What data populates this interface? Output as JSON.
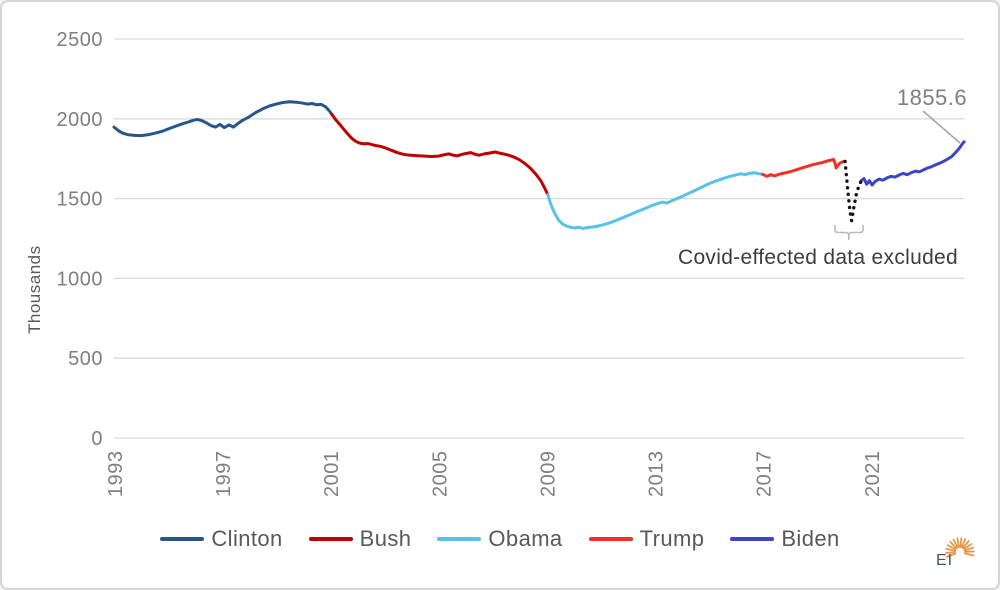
{
  "chart_data": {
    "type": "line",
    "title": "",
    "xlabel": "",
    "ylabel": "Thousands",
    "ylim": [
      0,
      2500
    ],
    "xlim": [
      1993,
      2024.45
    ],
    "yticks": [
      "0",
      "500",
      "1000",
      "1500",
      "2000",
      "2500"
    ],
    "ytick_values": [
      0,
      500,
      1000,
      1500,
      2000,
      2500
    ],
    "xticks": [
      "1993",
      "1997",
      "2001",
      "2005",
      "2009",
      "2013",
      "2017",
      "2021"
    ],
    "xtick_values": [
      1993,
      1997,
      2001,
      2005,
      2009,
      2013,
      2017,
      2021
    ],
    "grid": true,
    "legend_position": "bottom",
    "colors": {
      "grid": "#d9d9d9",
      "tick_text": "#7f7f7f",
      "annotation_text": "#7f7f7f",
      "covid_text": "#3d3d3d",
      "leader_line": "#a6a6a6",
      "bracket": "#b9b9b9",
      "excluded_dots": "#151515"
    },
    "series": [
      {
        "name": "Clinton",
        "color": "#26568C",
        "points": [
          [
            1993.0,
            1948
          ],
          [
            1993.17,
            1925
          ],
          [
            1993.33,
            1910
          ],
          [
            1993.5,
            1901
          ],
          [
            1993.75,
            1896
          ],
          [
            1994.0,
            1895
          ],
          [
            1994.25,
            1900
          ],
          [
            1994.5,
            1909
          ],
          [
            1994.75,
            1920
          ],
          [
            1995.0,
            1936
          ],
          [
            1995.25,
            1952
          ],
          [
            1995.5,
            1967
          ],
          [
            1995.75,
            1980
          ],
          [
            1995.92,
            1990
          ],
          [
            1996.08,
            1996
          ],
          [
            1996.25,
            1989
          ],
          [
            1996.42,
            1975
          ],
          [
            1996.58,
            1958
          ],
          [
            1996.75,
            1948
          ],
          [
            1996.92,
            1965
          ],
          [
            1997.08,
            1945
          ],
          [
            1997.25,
            1962
          ],
          [
            1997.42,
            1948
          ],
          [
            1997.58,
            1970
          ],
          [
            1997.75,
            1990
          ],
          [
            1998.0,
            2012
          ],
          [
            1998.25,
            2040
          ],
          [
            1998.5,
            2062
          ],
          [
            1998.75,
            2080
          ],
          [
            1999.0,
            2092
          ],
          [
            1999.25,
            2102
          ],
          [
            1999.5,
            2107
          ],
          [
            1999.75,
            2104
          ],
          [
            2000.0,
            2098
          ],
          [
            2000.17,
            2092
          ],
          [
            2000.33,
            2096
          ],
          [
            2000.5,
            2088
          ],
          [
            2000.67,
            2090
          ],
          [
            2000.83,
            2075
          ],
          [
            2000.95,
            2052
          ],
          [
            2001.05,
            2030
          ]
        ]
      },
      {
        "name": "Bush",
        "color": "#C00000",
        "points": [
          [
            2001.05,
            2030
          ],
          [
            2001.2,
            1995
          ],
          [
            2001.35,
            1965
          ],
          [
            2001.5,
            1935
          ],
          [
            2001.65,
            1905
          ],
          [
            2001.8,
            1878
          ],
          [
            2001.95,
            1858
          ],
          [
            2002.1,
            1848
          ],
          [
            2002.25,
            1843
          ],
          [
            2002.4,
            1845
          ],
          [
            2002.55,
            1838
          ],
          [
            2002.7,
            1832
          ],
          [
            2002.85,
            1828
          ],
          [
            2003.0,
            1820
          ],
          [
            2003.15,
            1810
          ],
          [
            2003.3,
            1800
          ],
          [
            2003.45,
            1790
          ],
          [
            2003.6,
            1782
          ],
          [
            2003.75,
            1776
          ],
          [
            2004.0,
            1772
          ],
          [
            2004.25,
            1768
          ],
          [
            2004.5,
            1766
          ],
          [
            2004.75,
            1764
          ],
          [
            2005.0,
            1766
          ],
          [
            2005.2,
            1774
          ],
          [
            2005.4,
            1780
          ],
          [
            2005.55,
            1772
          ],
          [
            2005.7,
            1768
          ],
          [
            2005.85,
            1776
          ],
          [
            2006.0,
            1782
          ],
          [
            2006.2,
            1788
          ],
          [
            2006.35,
            1778
          ],
          [
            2006.5,
            1772
          ],
          [
            2006.7,
            1780
          ],
          [
            2006.9,
            1786
          ],
          [
            2007.1,
            1792
          ],
          [
            2007.25,
            1786
          ],
          [
            2007.4,
            1780
          ],
          [
            2007.6,
            1772
          ],
          [
            2007.8,
            1760
          ],
          [
            2008.0,
            1744
          ],
          [
            2008.2,
            1720
          ],
          [
            2008.4,
            1692
          ],
          [
            2008.6,
            1655
          ],
          [
            2008.8,
            1610
          ],
          [
            2008.95,
            1560
          ],
          [
            2009.05,
            1525
          ]
        ]
      },
      {
        "name": "Obama",
        "color": "#56C2E8",
        "points": [
          [
            2009.05,
            1525
          ],
          [
            2009.15,
            1470
          ],
          [
            2009.3,
            1410
          ],
          [
            2009.45,
            1365
          ],
          [
            2009.6,
            1340
          ],
          [
            2009.75,
            1328
          ],
          [
            2009.9,
            1320
          ],
          [
            2010.05,
            1316
          ],
          [
            2010.2,
            1320
          ],
          [
            2010.35,
            1313
          ],
          [
            2010.5,
            1318
          ],
          [
            2010.7,
            1322
          ],
          [
            2010.9,
            1328
          ],
          [
            2011.1,
            1336
          ],
          [
            2011.3,
            1346
          ],
          [
            2011.5,
            1358
          ],
          [
            2011.7,
            1372
          ],
          [
            2011.9,
            1386
          ],
          [
            2012.1,
            1400
          ],
          [
            2012.3,
            1414
          ],
          [
            2012.5,
            1428
          ],
          [
            2012.7,
            1442
          ],
          [
            2012.9,
            1456
          ],
          [
            2013.1,
            1468
          ],
          [
            2013.3,
            1478
          ],
          [
            2013.45,
            1472
          ],
          [
            2013.6,
            1484
          ],
          [
            2013.8,
            1498
          ],
          [
            2014.0,
            1512
          ],
          [
            2014.2,
            1528
          ],
          [
            2014.4,
            1544
          ],
          [
            2014.6,
            1560
          ],
          [
            2014.8,
            1576
          ],
          [
            2015.0,
            1592
          ],
          [
            2015.2,
            1606
          ],
          [
            2015.4,
            1618
          ],
          [
            2015.6,
            1630
          ],
          [
            2015.8,
            1640
          ],
          [
            2016.0,
            1648
          ],
          [
            2016.2,
            1656
          ],
          [
            2016.35,
            1650
          ],
          [
            2016.5,
            1658
          ],
          [
            2016.7,
            1662
          ],
          [
            2016.85,
            1656
          ],
          [
            2017.0,
            1652
          ]
        ]
      },
      {
        "name": "Trump",
        "color": "#EE3124",
        "points": [
          [
            2017.0,
            1652
          ],
          [
            2017.15,
            1640
          ],
          [
            2017.3,
            1650
          ],
          [
            2017.45,
            1642
          ],
          [
            2017.6,
            1652
          ],
          [
            2017.75,
            1658
          ],
          [
            2017.9,
            1664
          ],
          [
            2018.05,
            1670
          ],
          [
            2018.2,
            1678
          ],
          [
            2018.35,
            1686
          ],
          [
            2018.5,
            1694
          ],
          [
            2018.65,
            1702
          ],
          [
            2018.8,
            1710
          ],
          [
            2018.95,
            1716
          ],
          [
            2019.1,
            1722
          ],
          [
            2019.25,
            1728
          ],
          [
            2019.4,
            1736
          ],
          [
            2019.55,
            1742
          ],
          [
            2019.62,
            1746
          ],
          [
            2019.68,
            1720
          ],
          [
            2019.72,
            1692
          ],
          [
            2019.78,
            1706
          ],
          [
            2019.85,
            1722
          ],
          [
            2019.95,
            1730
          ],
          [
            2020.05,
            1733
          ]
        ]
      },
      {
        "name": "Biden",
        "color": "#3A45C8",
        "points": [
          [
            2020.65,
            1612
          ],
          [
            2020.75,
            1625
          ],
          [
            2020.85,
            1590
          ],
          [
            2020.95,
            1612
          ],
          [
            2021.05,
            1585
          ],
          [
            2021.15,
            1605
          ],
          [
            2021.3,
            1622
          ],
          [
            2021.45,
            1615
          ],
          [
            2021.6,
            1630
          ],
          [
            2021.75,
            1640
          ],
          [
            2021.9,
            1635
          ],
          [
            2022.05,
            1648
          ],
          [
            2022.2,
            1658
          ],
          [
            2022.35,
            1650
          ],
          [
            2022.5,
            1662
          ],
          [
            2022.65,
            1672
          ],
          [
            2022.8,
            1668
          ],
          [
            2022.95,
            1680
          ],
          [
            2023.1,
            1692
          ],
          [
            2023.25,
            1700
          ],
          [
            2023.4,
            1712
          ],
          [
            2023.55,
            1722
          ],
          [
            2023.7,
            1734
          ],
          [
            2023.85,
            1748
          ],
          [
            2024.0,
            1764
          ],
          [
            2024.1,
            1782
          ],
          [
            2024.2,
            1800
          ],
          [
            2024.3,
            1820
          ],
          [
            2024.38,
            1840
          ],
          [
            2024.45,
            1855.6
          ]
        ]
      }
    ],
    "excluded_segment": {
      "style": "dotted",
      "points": [
        [
          2020.05,
          1733
        ],
        [
          2020.09,
          1660
        ],
        [
          2020.13,
          1590
        ],
        [
          2020.17,
          1520
        ],
        [
          2020.21,
          1455
        ],
        [
          2020.25,
          1400
        ],
        [
          2020.29,
          1362
        ],
        [
          2020.38,
          1450
        ],
        [
          2020.47,
          1530
        ],
        [
          2020.56,
          1580
        ],
        [
          2020.65,
          1612
        ]
      ]
    },
    "annotations": {
      "end_value_label": "1855.6",
      "covid_note": "Covid-effected data excluded"
    },
    "legend": {
      "entries": [
        "Clinton",
        "Bush",
        "Obama",
        "Trump",
        "Biden"
      ]
    }
  },
  "logo": {
    "text": "EI",
    "color": "#44546a",
    "rays_color": "#EA9440"
  }
}
